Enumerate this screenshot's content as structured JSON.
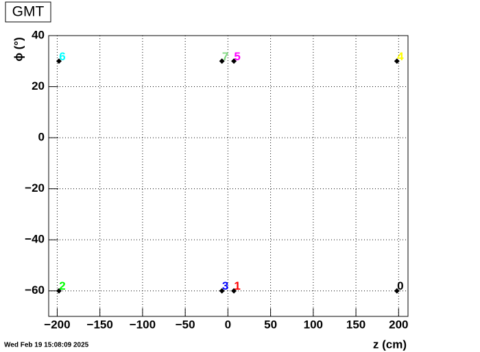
{
  "chart_data": {
    "type": "scatter",
    "title": "GMT",
    "x_label": "z (cm)",
    "y_label": "ϕ (°)",
    "footer": "Wed Feb 19 15:08:09 2025",
    "xlim": [
      -210,
      211
    ],
    "ylim": [
      -70,
      40
    ],
    "xticks": [
      {
        "value": -200,
        "label": "−200"
      },
      {
        "value": -150,
        "label": "−150"
      },
      {
        "value": -100,
        "label": "−100"
      },
      {
        "value": -50,
        "label": "−50"
      },
      0,
      50,
      100,
      150,
      200
    ],
    "yticks": [
      {
        "value": -60,
        "label": "−60"
      },
      {
        "value": -40,
        "label": "−40"
      },
      {
        "value": -20,
        "label": "−20"
      },
      0,
      20,
      40
    ],
    "grid": true,
    "series": [
      {
        "color": "#000000",
        "x": [
          198,
          7,
          -198,
          -7,
          198,
          7,
          -198,
          -7
        ],
        "values": [
          -60,
          -60,
          -60,
          -60,
          30,
          30,
          30,
          30
        ],
        "point_labels": [
          "0",
          "1",
          "2",
          "3",
          "4",
          "5",
          "6",
          "7"
        ],
        "label_colors": [
          "#000000",
          "#ff0000",
          "#00ff00",
          "#0000ff",
          "#ffff00",
          "#ff00ff",
          "#00ffff",
          "#7fd77f"
        ]
      }
    ]
  }
}
